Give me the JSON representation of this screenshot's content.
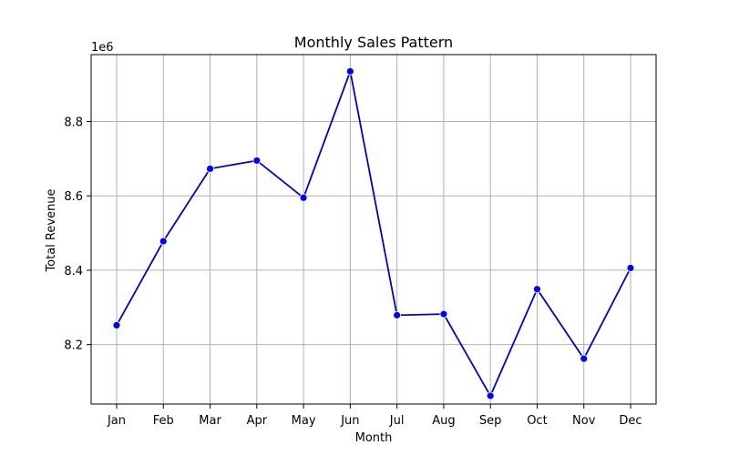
{
  "chart_data": {
    "type": "line",
    "title": "Monthly Sales Pattern",
    "xlabel": "Month",
    "ylabel": "Total Revenue",
    "y_offset_label": "1e6",
    "categories": [
      "Jan",
      "Feb",
      "Mar",
      "Apr",
      "May",
      "Jun",
      "Jul",
      "Aug",
      "Sep",
      "Oct",
      "Nov",
      "Dec"
    ],
    "series": [
      {
        "values": [
          8252000,
          8478000,
          8673000,
          8695000,
          8595000,
          8935000,
          8279000,
          8282000,
          8062000,
          8349000,
          8162000,
          8406000
        ]
      }
    ],
    "ylim": [
      8040000,
      8980000
    ],
    "yticks": [
      8200000,
      8400000,
      8600000,
      8800000
    ],
    "ytick_labels": [
      "8.2",
      "8.4",
      "8.6",
      "8.8"
    ],
    "grid": true,
    "line_color": "#0000cc",
    "marker_color": "#0000ff"
  }
}
